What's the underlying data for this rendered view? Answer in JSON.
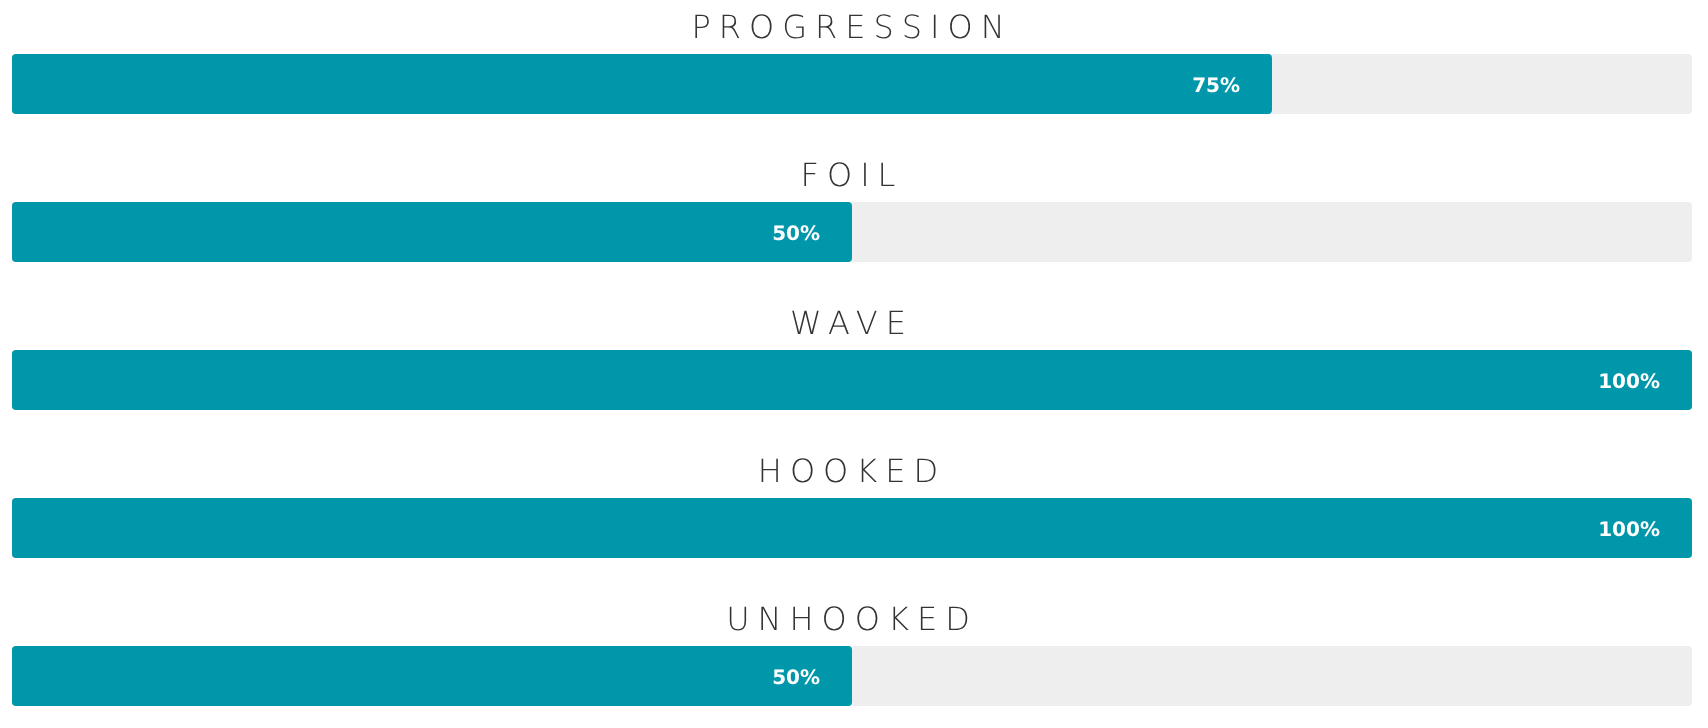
{
  "chart_data": {
    "type": "bar",
    "orientation": "horizontal",
    "categories": [
      "PROGRESSION",
      "FOIL",
      "WAVE",
      "HOOKED",
      "UNHOOKED"
    ],
    "values": [
      75,
      50,
      100,
      100,
      50
    ],
    "value_labels": [
      "75%",
      "50%",
      "100%",
      "100%",
      "50%"
    ],
    "color": "#0097ab",
    "xlim": [
      0,
      100
    ],
    "tick_labels": false
  }
}
